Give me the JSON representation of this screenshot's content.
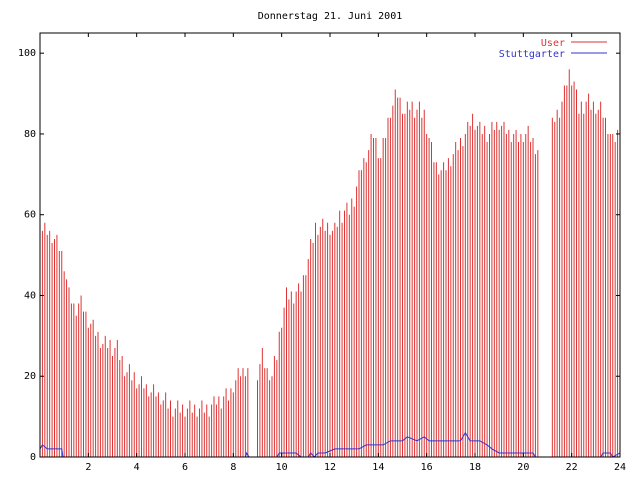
{
  "chart_data": {
    "type": "bar",
    "title": "Donnerstag 21. Juni 2001",
    "xlabel": "",
    "ylabel": "",
    "xlim": [
      0,
      24
    ],
    "ylim": [
      0,
      105
    ],
    "x_ticks": [
      "2",
      "4",
      "6",
      "8",
      "10",
      "12",
      "14",
      "16",
      "18",
      "20",
      "22",
      "24"
    ],
    "y_ticks": [
      "0",
      "20",
      "40",
      "60",
      "80",
      "100"
    ],
    "legend_position": "top-right",
    "grid": false,
    "sample_interval_hours": 0.1,
    "series": [
      {
        "name": "User",
        "style": "impulses",
        "color": "#dd3333",
        "anchors": [
          [
            0.0,
            62
          ],
          [
            0.1,
            56
          ],
          [
            0.5,
            55
          ],
          [
            0.8,
            52
          ],
          [
            1.0,
            48
          ],
          [
            1.2,
            40
          ],
          [
            1.4,
            37
          ],
          [
            1.7,
            38
          ],
          [
            2.0,
            34
          ],
          [
            2.3,
            31
          ],
          [
            2.6,
            28
          ],
          [
            3.2,
            27
          ],
          [
            3.5,
            22
          ],
          [
            4.0,
            19
          ],
          [
            4.4,
            17
          ],
          [
            5.0,
            15
          ],
          [
            5.6,
            12
          ],
          [
            6.0,
            12
          ],
          [
            6.5,
            12
          ],
          [
            7.0,
            12
          ],
          [
            7.4,
            14
          ],
          [
            7.8,
            15
          ],
          [
            8.2,
            20
          ],
          [
            8.6,
            22
          ],
          [
            9.0,
            21
          ],
          [
            9.2,
            25
          ],
          [
            9.4,
            21
          ],
          [
            9.6,
            20
          ],
          [
            9.8,
            25
          ],
          [
            10.0,
            34
          ],
          [
            10.2,
            40
          ],
          [
            10.5,
            40
          ],
          [
            10.8,
            42
          ],
          [
            11.1,
            49
          ],
          [
            11.4,
            57
          ],
          [
            11.8,
            57
          ],
          [
            12.2,
            56
          ],
          [
            12.4,
            60
          ],
          [
            12.8,
            61
          ],
          [
            13.0,
            64
          ],
          [
            13.3,
            72
          ],
          [
            13.6,
            76
          ],
          [
            13.8,
            80
          ],
          [
            14.1,
            74
          ],
          [
            14.3,
            80
          ],
          [
            14.5,
            86
          ],
          [
            14.8,
            90
          ],
          [
            15.1,
            85
          ],
          [
            15.3,
            87
          ],
          [
            15.6,
            86
          ],
          [
            15.9,
            85
          ],
          [
            16.2,
            76
          ],
          [
            16.4,
            72
          ],
          [
            16.7,
            71
          ],
          [
            17.0,
            74
          ],
          [
            17.3,
            77
          ],
          [
            17.6,
            80
          ],
          [
            17.9,
            84
          ],
          [
            18.2,
            81
          ],
          [
            18.6,
            80
          ],
          [
            19.0,
            83
          ],
          [
            19.4,
            80
          ],
          [
            19.8,
            79
          ],
          [
            20.2,
            80
          ],
          [
            20.6,
            76
          ],
          [
            20.9,
            78
          ],
          [
            21.2,
            82
          ],
          [
            21.6,
            88
          ],
          [
            21.9,
            95
          ],
          [
            22.1,
            93
          ],
          [
            22.3,
            86
          ],
          [
            22.6,
            88
          ],
          [
            22.9,
            87
          ],
          [
            23.2,
            86
          ],
          [
            23.5,
            82
          ],
          [
            23.7,
            78
          ],
          [
            23.9,
            80
          ],
          [
            24.0,
            80
          ]
        ],
        "gaps_hours": [
          [
            8.6,
            9.0
          ],
          [
            20.6,
            21.2
          ]
        ]
      },
      {
        "name": "Stuttgarter",
        "style": "lines",
        "color": "#3333cc",
        "points": [
          [
            0.0,
            2
          ],
          [
            0.1,
            3
          ],
          [
            0.3,
            2
          ],
          [
            0.9,
            2
          ],
          [
            0.95,
            0
          ],
          [
            8.5,
            0
          ],
          [
            8.55,
            1
          ],
          [
            8.65,
            0
          ],
          [
            9.8,
            0
          ],
          [
            9.9,
            1
          ],
          [
            10.3,
            1
          ],
          [
            10.6,
            1
          ],
          [
            10.8,
            0
          ],
          [
            11.1,
            0
          ],
          [
            11.2,
            1
          ],
          [
            11.35,
            0
          ],
          [
            11.5,
            1
          ],
          [
            11.8,
            1
          ],
          [
            12.2,
            2
          ],
          [
            12.5,
            2
          ],
          [
            13.2,
            2
          ],
          [
            13.5,
            3
          ],
          [
            13.8,
            3
          ],
          [
            14.2,
            3
          ],
          [
            14.5,
            4
          ],
          [
            15.0,
            4
          ],
          [
            15.2,
            5
          ],
          [
            15.6,
            4
          ],
          [
            15.9,
            5
          ],
          [
            16.1,
            4
          ],
          [
            16.4,
            4
          ],
          [
            17.0,
            4
          ],
          [
            17.4,
            4
          ],
          [
            17.6,
            6
          ],
          [
            17.8,
            4
          ],
          [
            18.2,
            4
          ],
          [
            18.5,
            3
          ],
          [
            18.7,
            2
          ],
          [
            19.0,
            1
          ],
          [
            19.4,
            1
          ],
          [
            20.4,
            1
          ],
          [
            20.5,
            0
          ],
          [
            22.0,
            0
          ],
          [
            23.2,
            0
          ],
          [
            23.3,
            1
          ],
          [
            23.6,
            1
          ],
          [
            23.7,
            0
          ],
          [
            24.0,
            1
          ]
        ]
      }
    ]
  }
}
